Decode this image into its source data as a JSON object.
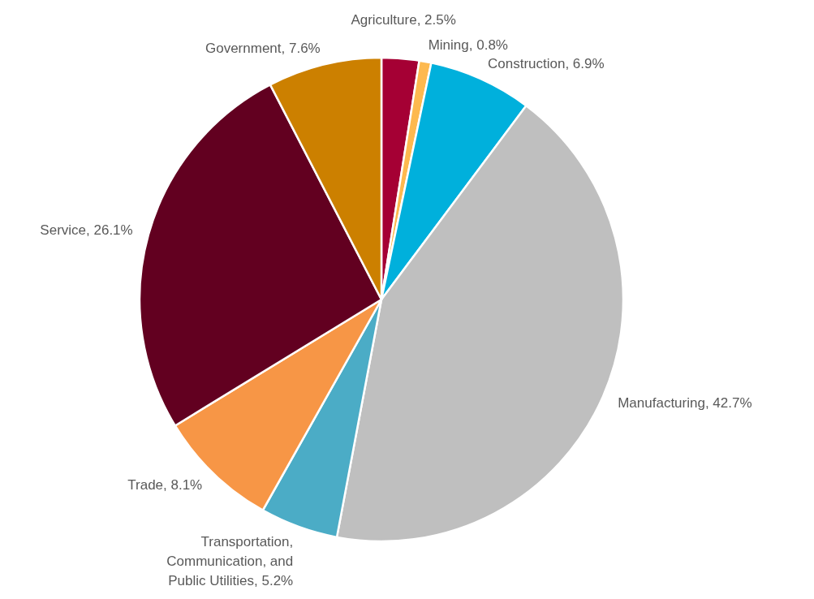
{
  "chart_data": {
    "type": "pie",
    "categories": [
      "Agriculture",
      "Mining",
      "Construction",
      "Manufacturing",
      "Transportation, Communication, and Public Utilities",
      "Trade",
      "Service",
      "Government"
    ],
    "values": [
      2.5,
      0.8,
      6.9,
      42.7,
      5.2,
      8.1,
      26.1,
      7.6
    ],
    "value_labels": [
      "2.5%",
      "0.8%",
      "6.9%",
      "42.7%",
      "5.2%",
      "8.1%",
      "26.1%",
      "7.6%"
    ],
    "colors": [
      "#a50034",
      "#fdb94f",
      "#00b0dc",
      "#bfbfbf",
      "#4bacc6",
      "#f79646",
      "#620020",
      "#cc8000"
    ]
  }
}
